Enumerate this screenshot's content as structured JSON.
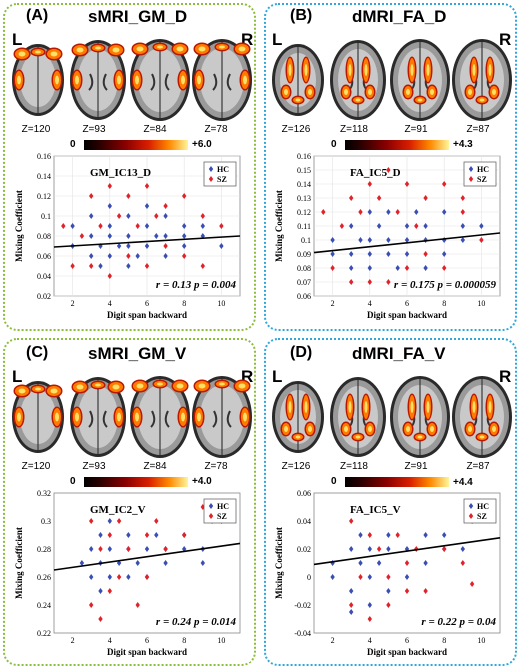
{
  "panels": [
    {
      "label": "(A)",
      "title": "sMRI_GM_D",
      "side_left": "L",
      "side_right": "R",
      "z": [
        "Z=120",
        "Z=93",
        "Z=84",
        "Z=78"
      ],
      "cbar": {
        "min": "0",
        "max": "+6.0"
      },
      "plot": {
        "ic": "GM_IC13_D",
        "ylabel": "Mixing Coefficient",
        "xlabel": "Digit span backward",
        "yticks": [
          "0.02",
          "0.04",
          "0.06",
          "0.08",
          "0.1",
          "0.12",
          "0.14",
          "0.16"
        ],
        "xticks": [
          "2",
          "4",
          "6",
          "8",
          "10"
        ],
        "legend": [
          "HC",
          "SZ"
        ],
        "stats": "r = 0.13  p = 0.004"
      }
    },
    {
      "label": "(B)",
      "title": "dMRI_FA_D",
      "side_left": "L",
      "side_right": "R",
      "z": [
        "Z=126",
        "Z=118",
        "Z=91",
        "Z=87"
      ],
      "cbar": {
        "min": "0",
        "max": "+4.3"
      },
      "plot": {
        "ic": "FA_IC5_D",
        "ylabel": "Mixing Coefficient",
        "xlabel": "Digit span backward",
        "yticks": [
          "0.06",
          "0.07",
          "0.08",
          "0.09",
          "0.1",
          "0.11",
          "0.12",
          "0.13",
          "0.14",
          "0.15",
          "0.16"
        ],
        "xticks": [
          "2",
          "4",
          "6",
          "8",
          "10"
        ],
        "legend": [
          "HC",
          "SZ"
        ],
        "stats": "r = 0.175  p = 0.000059"
      }
    },
    {
      "label": "(C)",
      "title": "sMRI_GM_V",
      "side_left": "L",
      "side_right": "R",
      "z": [
        "Z=120",
        "Z=93",
        "Z=84",
        "Z=78"
      ],
      "cbar": {
        "min": "0",
        "max": "+4.0"
      },
      "plot": {
        "ic": "GM_IC2_V",
        "ylabel": "Mixing Coefficient",
        "xlabel": "Digit span backward",
        "yticks": [
          "0.22",
          "0.24",
          "0.26",
          "0.28",
          "0.3",
          "0.32"
        ],
        "xticks": [
          "2",
          "4",
          "6",
          "8",
          "10"
        ],
        "legend": [
          "HC",
          "SZ"
        ],
        "stats": "r = 0.24  p = 0.014"
      }
    },
    {
      "label": "(D)",
      "title": "dMRI_FA_V",
      "side_left": "L",
      "side_right": "R",
      "z": [
        "Z=126",
        "Z=118",
        "Z=91",
        "Z=87"
      ],
      "cbar": {
        "min": "0",
        "max": "+4.4"
      },
      "plot": {
        "ic": "FA_IC5_V",
        "ylabel": "Mixing Coefficient",
        "xlabel": "Digit span backward",
        "yticks": [
          "-0.04",
          "-0.02",
          "0",
          "0.02",
          "0.04",
          "0.06"
        ],
        "xticks": [
          "2",
          "4",
          "6",
          "8",
          "10"
        ],
        "legend": [
          "HC",
          "SZ"
        ],
        "stats": "r = 0.22  p = 0.04"
      }
    }
  ],
  "colors": {
    "hc": "#3a4fb4",
    "sz": "#e0232b",
    "green_border": "#8cbd3c",
    "blue_border": "#2ea7da"
  },
  "chart_data": [
    {
      "type": "scatter",
      "title": "GM_IC13_D",
      "xlabel": "Digit span backward",
      "ylabel": "Mixing Coefficient",
      "xlim": [
        1,
        11
      ],
      "ylim": [
        0.02,
        0.16
      ],
      "grid": true,
      "legend_position": "top-right",
      "series": [
        {
          "name": "HC",
          "points": [
            [
              2,
              0.07
            ],
            [
              2,
              0.09
            ],
            [
              3,
              0.06
            ],
            [
              3,
              0.08
            ],
            [
              3,
              0.1
            ],
            [
              3.5,
              0.07
            ],
            [
              3.5,
              0.05
            ],
            [
              4,
              0.06
            ],
            [
              4,
              0.08
            ],
            [
              4,
              0.09
            ],
            [
              4,
              0.11
            ],
            [
              4.5,
              0.07
            ],
            [
              5,
              0.05
            ],
            [
              5,
              0.07
            ],
            [
              5,
              0.08
            ],
            [
              5,
              0.1
            ],
            [
              5.5,
              0.06
            ],
            [
              6,
              0.07
            ],
            [
              6,
              0.09
            ],
            [
              6,
              0.11
            ],
            [
              6.5,
              0.08
            ],
            [
              7,
              0.06
            ],
            [
              7,
              0.08
            ],
            [
              7,
              0.1
            ],
            [
              8,
              0.07
            ],
            [
              8,
              0.09
            ],
            [
              8,
              0.08
            ],
            [
              9,
              0.09
            ],
            [
              9,
              0.08
            ],
            [
              10,
              0.07
            ]
          ]
        },
        {
          "name": "SZ",
          "points": [
            [
              1.5,
              0.09
            ],
            [
              2,
              0.05
            ],
            [
              2.5,
              0.08
            ],
            [
              3,
              0.12
            ],
            [
              3,
              0.05
            ],
            [
              3.5,
              0.09
            ],
            [
              4,
              0.13
            ],
            [
              4,
              0.04
            ],
            [
              4.5,
              0.1
            ],
            [
              5,
              0.12
            ],
            [
              5,
              0.06
            ],
            [
              5.5,
              0.09
            ],
            [
              6,
              0.13
            ],
            [
              6,
              0.05
            ],
            [
              6.5,
              0.1
            ],
            [
              7,
              0.07
            ],
            [
              7,
              0.11
            ],
            [
              8,
              0.12
            ],
            [
              8,
              0.06
            ],
            [
              9,
              0.1
            ],
            [
              9,
              0.05
            ],
            [
              10,
              0.09
            ]
          ]
        }
      ],
      "trendline": {
        "x": [
          1,
          11
        ],
        "y": [
          0.069,
          0.08
        ]
      },
      "annotation": "r = 0.13  p = 0.004"
    },
    {
      "type": "scatter",
      "title": "FA_IC5_D",
      "xlabel": "Digit span backward",
      "ylabel": "Mixing Coefficient",
      "xlim": [
        1,
        11
      ],
      "ylim": [
        0.06,
        0.16
      ],
      "grid": true,
      "legend_position": "top-right",
      "series": [
        {
          "name": "HC",
          "points": [
            [
              2,
              0.09
            ],
            [
              2,
              0.1
            ],
            [
              3,
              0.09
            ],
            [
              3,
              0.11
            ],
            [
              3,
              0.08
            ],
            [
              3.5,
              0.1
            ],
            [
              4,
              0.09
            ],
            [
              4,
              0.1
            ],
            [
              4,
              0.12
            ],
            [
              4,
              0.08
            ],
            [
              4.5,
              0.11
            ],
            [
              5,
              0.09
            ],
            [
              5,
              0.1
            ],
            [
              5,
              0.12
            ],
            [
              5.5,
              0.08
            ],
            [
              6,
              0.1
            ],
            [
              6,
              0.11
            ],
            [
              6,
              0.09
            ],
            [
              6.5,
              0.12
            ],
            [
              7,
              0.1
            ],
            [
              7,
              0.08
            ],
            [
              7,
              0.11
            ],
            [
              8,
              0.1
            ],
            [
              8,
              0.12
            ],
            [
              8,
              0.09
            ],
            [
              9,
              0.11
            ],
            [
              9,
              0.1
            ],
            [
              10,
              0.11
            ]
          ]
        },
        {
          "name": "SZ",
          "points": [
            [
              1.5,
              0.12
            ],
            [
              2,
              0.08
            ],
            [
              2.5,
              0.11
            ],
            [
              3,
              0.13
            ],
            [
              3,
              0.07
            ],
            [
              3.5,
              0.12
            ],
            [
              4,
              0.14
            ],
            [
              4,
              0.07
            ],
            [
              4.5,
              0.13
            ],
            [
              5,
              0.15
            ],
            [
              5,
              0.07
            ],
            [
              5.5,
              0.12
            ],
            [
              6,
              0.14
            ],
            [
              6,
              0.08
            ],
            [
              6.5,
              0.11
            ],
            [
              7,
              0.13
            ],
            [
              7,
              0.09
            ],
            [
              8,
              0.14
            ],
            [
              8,
              0.08
            ],
            [
              9,
              0.12
            ],
            [
              9,
              0.13
            ],
            [
              10,
              0.1
            ]
          ]
        }
      ],
      "trendline": {
        "x": [
          1,
          11
        ],
        "y": [
          0.091,
          0.105
        ]
      },
      "annotation": "r = 0.175  p = 0.000059"
    },
    {
      "type": "scatter",
      "title": "GM_IC2_V",
      "xlabel": "Digit span backward",
      "ylabel": "Mixing Coefficient",
      "xlim": [
        1,
        11
      ],
      "ylim": [
        0.22,
        0.32
      ],
      "grid": false,
      "legend_position": "top-right",
      "series": [
        {
          "name": "HC",
          "points": [
            [
              2.5,
              0.27
            ],
            [
              3,
              0.26
            ],
            [
              3,
              0.28
            ],
            [
              3.5,
              0.27
            ],
            [
              3.5,
              0.29
            ],
            [
              3.5,
              0.25
            ],
            [
              4,
              0.28
            ],
            [
              4,
              0.26
            ],
            [
              4,
              0.3
            ],
            [
              4.5,
              0.27
            ],
            [
              5,
              0.28
            ],
            [
              5,
              0.26
            ],
            [
              5,
              0.29
            ],
            [
              5.5,
              0.27
            ],
            [
              6,
              0.28
            ],
            [
              6,
              0.26
            ],
            [
              6.5,
              0.29
            ],
            [
              7,
              0.28
            ],
            [
              7,
              0.27
            ],
            [
              8,
              0.28
            ],
            [
              8,
              0.29
            ],
            [
              9,
              0.27
            ],
            [
              9,
              0.28
            ],
            [
              10,
              0.3
            ]
          ]
        },
        {
          "name": "SZ",
          "points": [
            [
              3,
              0.3
            ],
            [
              3,
              0.24
            ],
            [
              3.5,
              0.23
            ],
            [
              3.5,
              0.28
            ],
            [
              4,
              0.25
            ],
            [
              4,
              0.29
            ],
            [
              4.5,
              0.26
            ],
            [
              4.5,
              0.3
            ],
            [
              5,
              0.28
            ],
            [
              5.5,
              0.24
            ],
            [
              6,
              0.29
            ],
            [
              6,
              0.26
            ],
            [
              6.5,
              0.3
            ],
            [
              7,
              0.28
            ],
            [
              8,
              0.29
            ],
            [
              9,
              0.31
            ],
            [
              9.5,
              0.3
            ]
          ]
        }
      ],
      "trendline": {
        "x": [
          1,
          11
        ],
        "y": [
          0.265,
          0.284
        ]
      },
      "annotation": "r = 0.24  p = 0.014"
    },
    {
      "type": "scatter",
      "title": "FA_IC5_V",
      "xlabel": "Digit span backward",
      "ylabel": "Mixing Coefficient",
      "xlim": [
        1,
        11
      ],
      "ylim": [
        -0.04,
        0.06
      ],
      "grid": false,
      "legend_position": "top-right",
      "series": [
        {
          "name": "HC",
          "points": [
            [
              2,
              0.01
            ],
            [
              2,
              0.0
            ],
            [
              3,
              0.02
            ],
            [
              3,
              -0.01
            ],
            [
              3.5,
              0.03
            ],
            [
              3.5,
              0.01
            ],
            [
              4,
              0.02
            ],
            [
              4,
              0.0
            ],
            [
              4,
              -0.02
            ],
            [
              4.5,
              0.01
            ],
            [
              5,
              0.02
            ],
            [
              5,
              -0.01
            ],
            [
              5,
              0.03
            ],
            [
              6,
              0.02
            ],
            [
              6,
              0.0
            ],
            [
              7,
              0.03
            ],
            [
              7,
              0.01
            ],
            [
              8,
              0.02
            ],
            [
              8,
              0.03
            ],
            [
              9,
              0.02
            ],
            [
              9.5,
              0.04
            ],
            [
              3,
              -0.025
            ]
          ]
        },
        {
          "name": "SZ",
          "points": [
            [
              3,
              0.04
            ],
            [
              3,
              -0.02
            ],
            [
              3.5,
              0.0
            ],
            [
              4,
              0.03
            ],
            [
              4,
              -0.03
            ],
            [
              4.5,
              0.02
            ],
            [
              5,
              0.0
            ],
            [
              5,
              -0.02
            ],
            [
              5.5,
              0.03
            ],
            [
              6,
              0.01
            ],
            [
              6,
              -0.01
            ],
            [
              6.5,
              0.02
            ],
            [
              7,
              -0.01
            ],
            [
              8,
              0.02
            ],
            [
              9,
              0.01
            ],
            [
              9.5,
              -0.005
            ]
          ]
        }
      ],
      "trendline": {
        "x": [
          1,
          11
        ],
        "y": [
          0.009,
          0.028
        ]
      },
      "annotation": "r = 0.22  p = 0.04"
    }
  ]
}
